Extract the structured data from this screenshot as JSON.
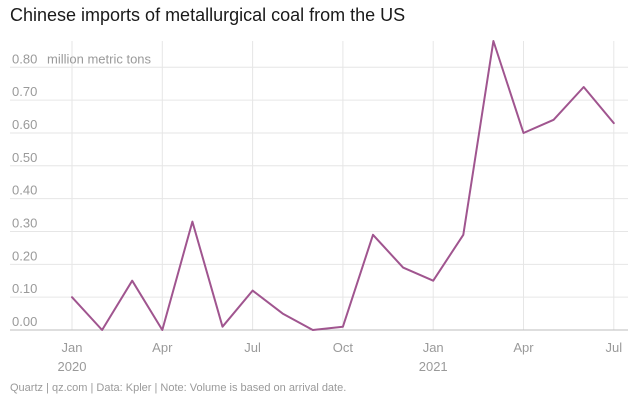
{
  "title": "Chinese imports of metallurgical coal from the US",
  "footer": "Quartz | qz.com | Data: Kpler | Note: Volume is based on arrival date.",
  "colors": {
    "line": "#a0558f",
    "grid": "#e6e6e6",
    "axis": "#bdbdbd",
    "text": "#9a9a9a"
  },
  "chart_data": {
    "type": "line",
    "title": "Chinese imports of metallurgical coal from the US",
    "ylabel": "million metric tons",
    "ylim": [
      0,
      0.88
    ],
    "y_ticks": [
      {
        "value": 0.0,
        "label": "0.00"
      },
      {
        "value": 0.1,
        "label": "0.10"
      },
      {
        "value": 0.2,
        "label": "0.20"
      },
      {
        "value": 0.3,
        "label": "0.30"
      },
      {
        "value": 0.4,
        "label": "0.40"
      },
      {
        "value": 0.5,
        "label": "0.50"
      },
      {
        "value": 0.6,
        "label": "0.60"
      },
      {
        "value": 0.7,
        "label": "0.70"
      },
      {
        "value": 0.8,
        "label": "0.80"
      }
    ],
    "x_ticks": [
      {
        "x": "2020-01",
        "label": "Jan",
        "year": "2020"
      },
      {
        "x": "2020-04",
        "label": "Apr"
      },
      {
        "x": "2020-07",
        "label": "Jul"
      },
      {
        "x": "2020-10",
        "label": "Oct"
      },
      {
        "x": "2021-01",
        "label": "Jan",
        "year": "2021"
      },
      {
        "x": "2021-04",
        "label": "Apr"
      },
      {
        "x": "2021-07",
        "label": "Jul"
      }
    ],
    "grid": true,
    "legend": "none",
    "series": [
      {
        "x": [
          "2020-01",
          "2020-02",
          "2020-03",
          "2020-04",
          "2020-05",
          "2020-06",
          "2020-07",
          "2020-08",
          "2020-09",
          "2020-10",
          "2020-11",
          "2020-12",
          "2021-01",
          "2021-02",
          "2021-03",
          "2021-04",
          "2021-05",
          "2021-06",
          "2021-07"
        ],
        "values": [
          0.1,
          0.0,
          0.15,
          0.0,
          0.33,
          0.01,
          0.12,
          0.05,
          0.0,
          0.01,
          0.29,
          0.19,
          0.15,
          0.29,
          0.88,
          0.6,
          0.64,
          0.74,
          0.63
        ]
      }
    ]
  }
}
